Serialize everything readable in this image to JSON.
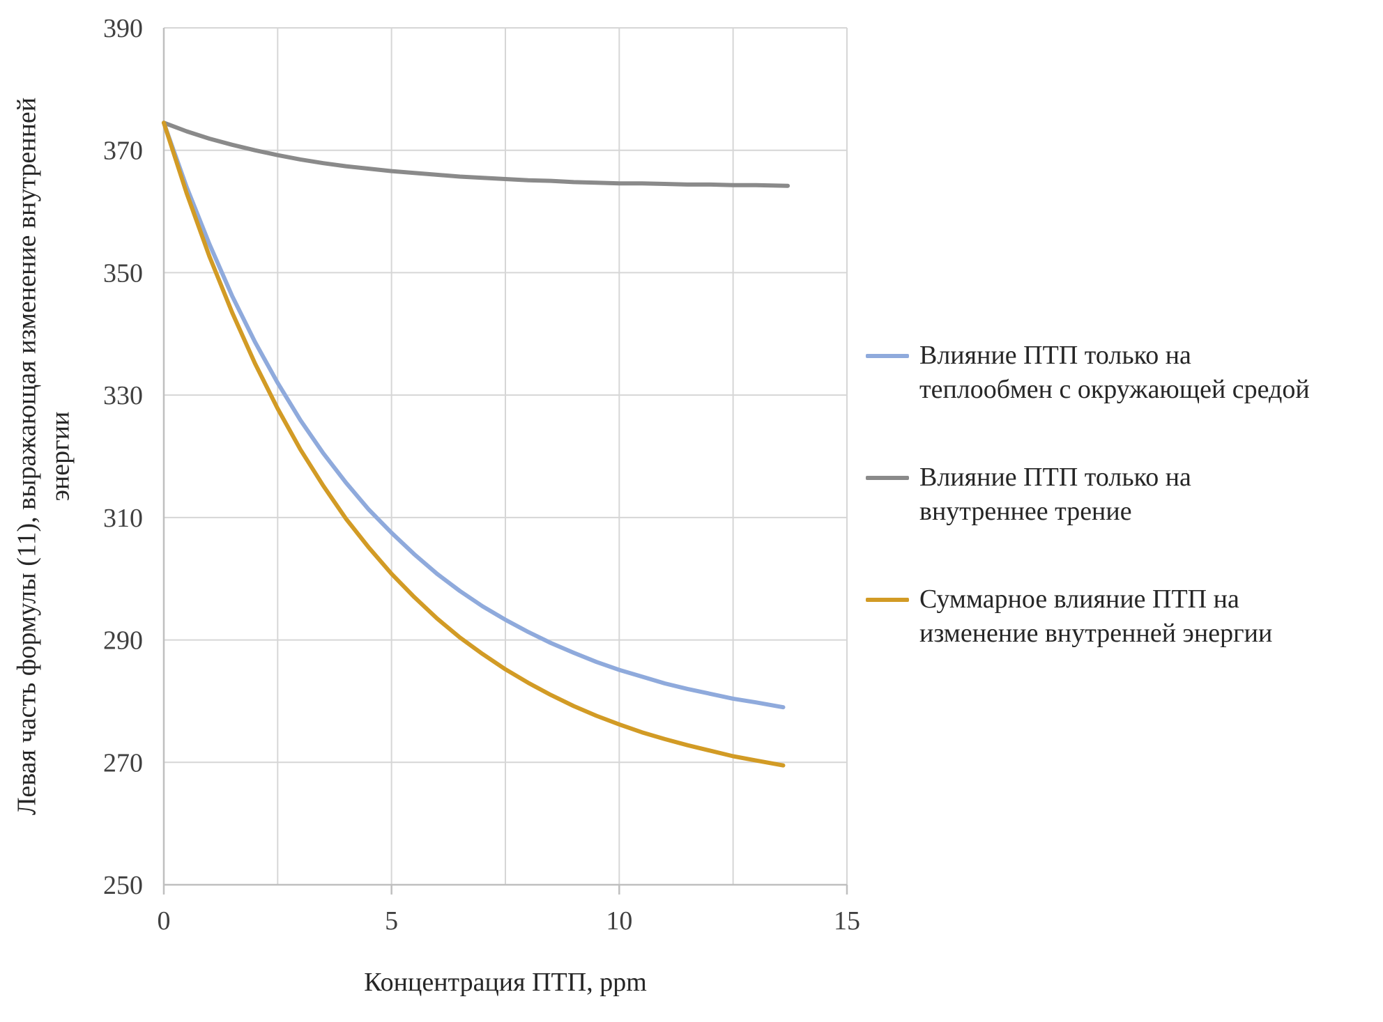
{
  "page": {
    "background": "#FFFFFF"
  },
  "chart_data": {
    "type": "line",
    "title": "",
    "xlabel": "Концентрация ПТП, ppm",
    "ylabel": "Левая часть формулы (11), выражающая изменение внутренней\nэнергии",
    "xlim": [
      0,
      15
    ],
    "ylim": [
      250,
      390
    ],
    "x_ticks": [
      0,
      5,
      10,
      15
    ],
    "y_ticks": [
      250,
      270,
      290,
      310,
      330,
      350,
      370,
      390
    ],
    "x_gridlines": [
      0,
      2.5,
      5,
      7.5,
      10,
      12.5,
      15
    ],
    "grid": true,
    "legend_position": "right",
    "grid_color": "#D6D6D6",
    "axis_color": "#BFBFBF",
    "text_color": "#404040",
    "series": [
      {
        "name": "Влияние ПТП только на теплообмен с окружающей средой",
        "color": "#8FAADC",
        "points": [
          [
            0,
            374.5
          ],
          [
            0.5,
            364.0
          ],
          [
            1,
            354.7
          ],
          [
            1.5,
            346.2
          ],
          [
            2,
            338.7
          ],
          [
            2.5,
            332.0
          ],
          [
            3,
            325.9
          ],
          [
            3.5,
            320.5
          ],
          [
            4,
            315.7
          ],
          [
            4.5,
            311.3
          ],
          [
            5,
            307.5
          ],
          [
            5.5,
            304.0
          ],
          [
            6,
            300.8
          ],
          [
            6.5,
            298.0
          ],
          [
            7,
            295.5
          ],
          [
            7.5,
            293.3
          ],
          [
            8,
            291.3
          ],
          [
            8.5,
            289.5
          ],
          [
            9,
            287.9
          ],
          [
            9.5,
            286.4
          ],
          [
            10,
            285.1
          ],
          [
            10.5,
            284.0
          ],
          [
            11,
            282.9
          ],
          [
            11.5,
            282.0
          ],
          [
            12,
            281.2
          ],
          [
            12.5,
            280.4
          ],
          [
            13,
            279.8
          ],
          [
            13.6,
            279.0
          ]
        ]
      },
      {
        "name": "Влияние ПТП только на внутреннее трение",
        "color": "#8A8A8A",
        "points": [
          [
            0,
            374.5
          ],
          [
            0.5,
            373.1
          ],
          [
            1,
            371.9
          ],
          [
            1.5,
            370.9
          ],
          [
            2,
            370.0
          ],
          [
            2.5,
            369.2
          ],
          [
            3,
            368.5
          ],
          [
            3.5,
            367.9
          ],
          [
            4,
            367.4
          ],
          [
            4.5,
            367.0
          ],
          [
            5,
            366.6
          ],
          [
            5.5,
            366.3
          ],
          [
            6,
            366.0
          ],
          [
            6.5,
            365.7
          ],
          [
            7,
            365.5
          ],
          [
            7.5,
            365.3
          ],
          [
            8,
            365.1
          ],
          [
            8.5,
            365.0
          ],
          [
            9,
            364.8
          ],
          [
            9.5,
            364.7
          ],
          [
            10,
            364.6
          ],
          [
            10.5,
            364.6
          ],
          [
            11,
            364.5
          ],
          [
            11.5,
            364.4
          ],
          [
            12,
            364.4
          ],
          [
            12.5,
            364.3
          ],
          [
            13,
            364.3
          ],
          [
            13.7,
            364.2
          ]
        ]
      },
      {
        "name": "Суммарное влияние ПТП на изменение внутренней энергии",
        "color": "#D29B25",
        "points": [
          [
            0,
            374.5
          ],
          [
            0.5,
            363.0
          ],
          [
            1,
            352.7
          ],
          [
            1.5,
            343.5
          ],
          [
            2,
            335.2
          ],
          [
            2.5,
            327.8
          ],
          [
            3,
            321.1
          ],
          [
            3.5,
            315.2
          ],
          [
            4,
            309.8
          ],
          [
            4.5,
            305.1
          ],
          [
            5,
            300.8
          ],
          [
            5.5,
            297.0
          ],
          [
            6,
            293.5
          ],
          [
            6.5,
            290.4
          ],
          [
            7,
            287.7
          ],
          [
            7.5,
            285.2
          ],
          [
            8,
            283.0
          ],
          [
            8.5,
            281.0
          ],
          [
            9,
            279.2
          ],
          [
            9.5,
            277.6
          ],
          [
            10,
            276.2
          ],
          [
            10.5,
            274.9
          ],
          [
            11,
            273.8
          ],
          [
            11.5,
            272.8
          ],
          [
            12,
            271.9
          ],
          [
            12.5,
            271.0
          ],
          [
            13,
            270.3
          ],
          [
            13.6,
            269.5
          ]
        ]
      }
    ]
  },
  "legend": {
    "items": [
      {
        "label": "Влияние ПТП только на\nтеплообмен с окружающей средой",
        "color": "#8FAADC"
      },
      {
        "label": "Влияние ПТП только на\nвнутреннее трение",
        "color": "#8A8A8A"
      },
      {
        "label": "Суммарное влияние ПТП на\nизменение внутренней энергии",
        "color": "#D29B25"
      }
    ]
  }
}
